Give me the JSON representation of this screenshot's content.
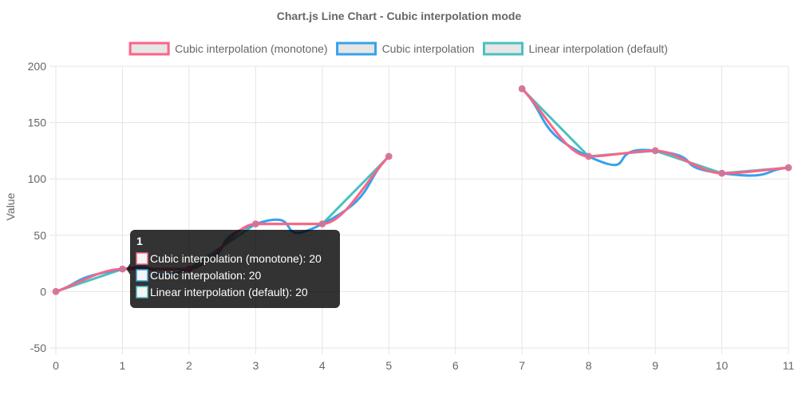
{
  "chart_data": {
    "type": "line",
    "title": "Chart.js Line Chart - Cubic interpolation mode",
    "ylabel": "Value",
    "xlabel": "",
    "categories": [
      "0",
      "1",
      "2",
      "3",
      "4",
      "5",
      "6",
      "7",
      "8",
      "9",
      "10",
      "11"
    ],
    "ylim": [
      -50,
      200
    ],
    "yticks": [
      "200",
      "150",
      "100",
      "50",
      "0",
      "-50"
    ],
    "ytick_values": [
      200,
      150,
      100,
      50,
      0,
      -50
    ],
    "grid": true,
    "legend_position": "top",
    "series": [
      {
        "name": "Cubic interpolation (monotone)",
        "color": "#ff6384",
        "values": [
          0,
          20,
          20,
          60,
          60,
          120,
          null,
          180,
          120,
          125,
          105,
          110
        ],
        "interpolation": "monotone"
      },
      {
        "name": "Cubic interpolation",
        "color": "#36a2eb",
        "values": [
          0,
          20,
          20,
          60,
          60,
          120,
          null,
          180,
          120,
          125,
          105,
          110
        ],
        "interpolation": "cubic"
      },
      {
        "name": "Linear interpolation (default)",
        "color": "#4bc0c0",
        "values": [
          0,
          20,
          20,
          60,
          60,
          120,
          null,
          180,
          120,
          125,
          105,
          110
        ],
        "interpolation": "linear"
      }
    ]
  },
  "tooltip": {
    "title": "1",
    "lines": [
      "Cubic interpolation (monotone): 20",
      "Cubic interpolation: 20",
      "Linear interpolation (default): 20"
    ]
  }
}
